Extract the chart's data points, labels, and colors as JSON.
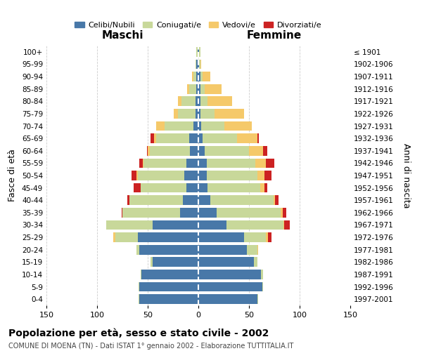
{
  "age_groups": [
    "0-4",
    "5-9",
    "10-14",
    "15-19",
    "20-24",
    "25-29",
    "30-34",
    "35-39",
    "40-44",
    "45-49",
    "50-54",
    "55-59",
    "60-64",
    "65-69",
    "70-74",
    "75-79",
    "80-84",
    "85-89",
    "90-94",
    "95-99",
    "100+"
  ],
  "birth_years": [
    "1997-2001",
    "1992-1996",
    "1987-1991",
    "1982-1986",
    "1977-1981",
    "1972-1976",
    "1967-1971",
    "1962-1966",
    "1957-1961",
    "1952-1956",
    "1947-1951",
    "1942-1946",
    "1937-1941",
    "1932-1936",
    "1927-1931",
    "1922-1926",
    "1917-1921",
    "1912-1916",
    "1907-1911",
    "1902-1906",
    "≤ 1901"
  ],
  "maschi": {
    "celibi": [
      58,
      58,
      56,
      45,
      58,
      60,
      45,
      18,
      15,
      12,
      14,
      12,
      8,
      9,
      5,
      3,
      3,
      2,
      2,
      2,
      1
    ],
    "coniugati": [
      1,
      1,
      1,
      2,
      3,
      22,
      46,
      57,
      53,
      45,
      46,
      42,
      40,
      33,
      28,
      17,
      14,
      7,
      3,
      1,
      1
    ],
    "vedovi": [
      0,
      0,
      0,
      0,
      0,
      2,
      0,
      0,
      0,
      0,
      1,
      1,
      2,
      2,
      9,
      4,
      3,
      2,
      1,
      0,
      0
    ],
    "divorziati": [
      0,
      0,
      0,
      0,
      0,
      0,
      0,
      1,
      2,
      7,
      5,
      3,
      1,
      3,
      0,
      0,
      0,
      0,
      0,
      0,
      0
    ]
  },
  "femmine": {
    "nubili": [
      58,
      63,
      62,
      55,
      48,
      45,
      28,
      18,
      12,
      9,
      8,
      8,
      6,
      4,
      3,
      2,
      2,
      2,
      2,
      1,
      1
    ],
    "coniugate": [
      1,
      1,
      2,
      3,
      10,
      22,
      56,
      63,
      62,
      52,
      50,
      48,
      44,
      34,
      23,
      14,
      7,
      4,
      2,
      1,
      1
    ],
    "vedove": [
      0,
      0,
      0,
      0,
      1,
      2,
      1,
      2,
      2,
      4,
      7,
      11,
      14,
      20,
      27,
      29,
      24,
      17,
      8,
      1,
      0
    ],
    "divorziate": [
      0,
      0,
      0,
      0,
      0,
      3,
      5,
      4,
      3,
      3,
      7,
      8,
      4,
      2,
      0,
      0,
      0,
      0,
      0,
      0,
      0
    ]
  },
  "colors": {
    "celibi_nubili": "#4878a8",
    "coniugati": "#c8d89a",
    "vedovi": "#f5c96a",
    "divorziati": "#cc2222"
  },
  "xlim": 150,
  "title": "Popolazione per età, sesso e stato civile - 2002",
  "subtitle": "COMUNE DI MOENA (TN) - Dati ISTAT 1° gennaio 2002 - Elaborazione TUTTITALIA.IT",
  "ylabel_left": "Fasce di età",
  "ylabel_right": "Anni di nascita",
  "xlabel_maschi": "Maschi",
  "xlabel_femmine": "Femmine",
  "bg_color": "#ffffff",
  "grid_color": "#cccccc"
}
